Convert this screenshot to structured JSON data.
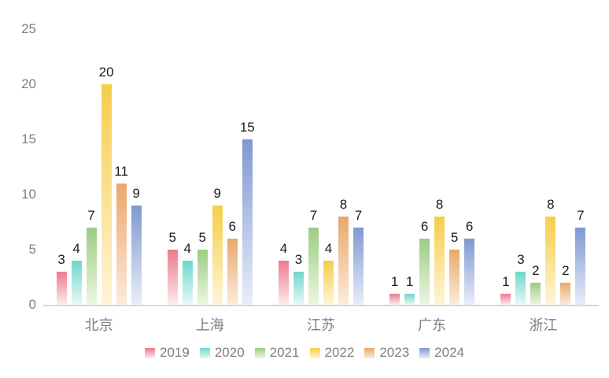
{
  "chart_data": {
    "type": "bar",
    "title": "",
    "categories": [
      "北京",
      "上海",
      "江苏",
      "广东",
      "浙江"
    ],
    "series": [
      {
        "name": "2019",
        "values": [
          3,
          5,
          4,
          1,
          1
        ],
        "color_top": "#ec7b8d",
        "color_bottom": "#fcebee"
      },
      {
        "name": "2020",
        "values": [
          4,
          4,
          3,
          1,
          3
        ],
        "color_top": "#6fd7cc",
        "color_bottom": "#e7f9f6"
      },
      {
        "name": "2021",
        "values": [
          7,
          5,
          7,
          6,
          2
        ],
        "color_top": "#9dcc81",
        "color_bottom": "#ecf6e4"
      },
      {
        "name": "2022",
        "values": [
          20,
          9,
          4,
          8,
          8
        ],
        "color_top": "#f7cd49",
        "color_bottom": "#fef5d8"
      },
      {
        "name": "2023",
        "values": [
          11,
          6,
          8,
          5,
          2
        ],
        "color_top": "#e9a86b",
        "color_bottom": "#fcebdb"
      },
      {
        "name": "2024",
        "values": [
          9,
          15,
          7,
          6,
          7
        ],
        "color_top": "#8098d2",
        "color_bottom": "#e9edf9"
      }
    ],
    "y_ticks": [
      0,
      5,
      10,
      15,
      20,
      25
    ],
    "ylim": [
      0,
      25
    ],
    "grid": false,
    "legend_position": "bottom",
    "value_labels_shown": true
  },
  "style": {
    "tick_color": "#808080",
    "category_color": "#7f7f7f",
    "value_label_color": "#1a1a1a",
    "baseline_color": "#d9d9d9",
    "background": "#ffffff"
  }
}
